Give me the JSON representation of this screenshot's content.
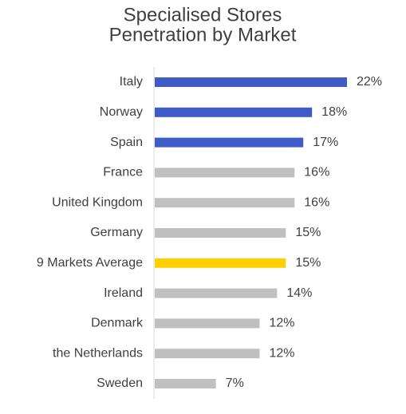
{
  "chart_data": {
    "type": "bar",
    "orientation": "horizontal",
    "title_lines": [
      "Specialised Stores",
      "Penetration by Market"
    ],
    "categories": [
      "Italy",
      "Norway",
      "Spain",
      "France",
      "United Kingdom",
      "Germany",
      "9 Markets Average",
      "Ireland",
      "Denmark",
      "the Netherlands",
      "Sweden"
    ],
    "values": [
      22,
      18,
      17,
      16,
      16,
      15,
      15,
      14,
      12,
      12,
      7
    ],
    "value_labels": [
      "22%",
      "18%",
      "17%",
      "16%",
      "16%",
      "15%",
      "15%",
      "14%",
      "12%",
      "12%",
      "7%"
    ],
    "bar_colors": [
      "#3f5bc8",
      "#3f5bc8",
      "#3f5bc8",
      "#c0c0c0",
      "#c0c0c0",
      "#c0c0c0",
      "#ffd000",
      "#c0c0c0",
      "#c0c0c0",
      "#c0c0c0",
      "#c0c0c0"
    ],
    "xlim": [
      0,
      22
    ],
    "grid": false,
    "legend": "none"
  }
}
